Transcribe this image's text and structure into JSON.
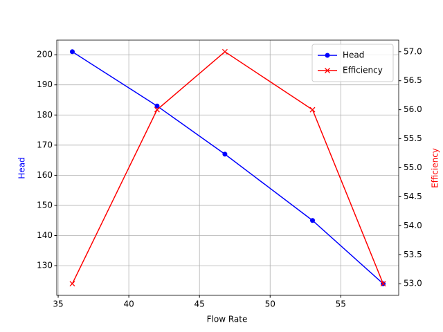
{
  "chart_data": {
    "type": "line",
    "x_label": "Flow Rate",
    "y_label": "Head",
    "y2_label": "Efficiency",
    "x": [
      36,
      42,
      46.8,
      53,
      58
    ],
    "series": [
      {
        "name": "Head",
        "color": "#0000ff",
        "marker": "o",
        "values": [
          201,
          183,
          167,
          145,
          124
        ]
      },
      {
        "name": "Efficiency",
        "color": "#ff0000",
        "marker": "x",
        "axis": "y2",
        "values": [
          53,
          56,
          57,
          56,
          53
        ]
      }
    ],
    "xlim": [
      34.9,
      59.1
    ],
    "xticks": [
      35,
      40,
      45,
      50,
      55
    ],
    "ylim": [
      120.15,
      204.85
    ],
    "yticks": [
      130,
      140,
      150,
      160,
      170,
      180,
      190,
      200
    ],
    "y2lim": [
      52.8,
      57.2
    ],
    "y2ticks": [
      {
        "value": 53,
        "label": "53.0"
      },
      {
        "value": 53.5,
        "label": "53.5"
      },
      {
        "value": 54,
        "label": "54.0"
      },
      {
        "value": 54.5,
        "label": "54.5"
      },
      {
        "value": 55,
        "label": "55.0"
      },
      {
        "value": 55.5,
        "label": "55.5"
      },
      {
        "value": 56,
        "label": "56.0"
      },
      {
        "value": 56.5,
        "label": "56.5"
      },
      {
        "value": 57,
        "label": "57.0"
      }
    ],
    "grid": true,
    "legend": "upper right"
  }
}
